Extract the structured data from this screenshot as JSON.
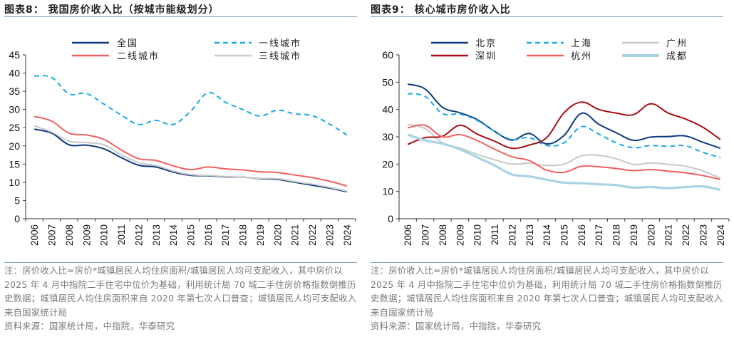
{
  "charts": [
    {
      "title": "图表8： 我国房价收入比（按城市能级划分）",
      "notes": "注：房价收入比=房价*城镇居民人均住房面积/城镇居民人均可支配收入，其中房价以 2025 年 4 月中指院二手住宅中位价为基础，利用统计局 70 城二手住房价格指数倒推历史数据；城镇居民人均住房面积来自 2020 年第七次人口普查；城镇居民人均可支配收入来自国家统计局",
      "source": "资料来源：国家统计局，中指院，华泰研究"
    },
    {
      "title": "图表9： 核心城市房价收入比",
      "notes": "注：房价收入比=房价*城镇居民人均住房面积/城镇居民人均可支配收入，其中房价以 2025 年 4 月中指院二手住宅中位价为基础，利用统计局 70 城二手住房价格指数倒推历史数据；城镇居民人均住房面积来自 2020 年第七次人口普查；城镇居民人均可支配收入来自国家统计局",
      "source": "资料来源：国家统计局，中指院，华泰研究"
    }
  ],
  "chart_data": [
    {
      "type": "line",
      "title": "图表8： 我国房价收入比（按城市能级划分）",
      "xlabel": "",
      "ylabel": "",
      "ylim": [
        0,
        45
      ],
      "yticks": [
        0,
        5,
        10,
        15,
        20,
        25,
        30,
        35,
        40,
        45
      ],
      "grid": false,
      "legend": "top",
      "categories": [
        "2006",
        "2007",
        "2008",
        "2009",
        "2010",
        "2011",
        "2012",
        "2013",
        "2014",
        "2015",
        "2016",
        "2017",
        "2018",
        "2019",
        "2020",
        "2021",
        "2022",
        "2023",
        "2024"
      ],
      "series": [
        {
          "name": "全国",
          "color": "#0b3a7e",
          "dash": false,
          "values": [
            24.6,
            23.5,
            20.3,
            20.2,
            19.2,
            16.8,
            14.7,
            14.2,
            12.8,
            11.9,
            11.8,
            11.5,
            11.4,
            11.0,
            10.8,
            10.0,
            9.2,
            8.4,
            7.4
          ]
        },
        {
          "name": "一线城市",
          "color": "#1aa8e8",
          "dash": true,
          "values": [
            39.2,
            38.8,
            34.3,
            34.4,
            31.5,
            28.5,
            25.9,
            27.0,
            25.9,
            29.5,
            34.6,
            32.0,
            30.0,
            28.2,
            29.8,
            28.8,
            28.3,
            26.0,
            23.0
          ]
        },
        {
          "name": "二线城市",
          "color": "#f2605f",
          "dash": false,
          "values": [
            28.1,
            26.8,
            23.5,
            23.0,
            21.8,
            18.9,
            16.5,
            16.0,
            14.5,
            13.5,
            14.2,
            13.7,
            13.4,
            12.9,
            12.7,
            12.0,
            11.3,
            10.3,
            9.0
          ]
        },
        {
          "name": "三线城市",
          "color": "#c8c8c8",
          "dash": false,
          "values": [
            25.5,
            23.8,
            21.3,
            20.9,
            20.3,
            17.6,
            15.4,
            14.6,
            13.1,
            12.1,
            11.9,
            11.6,
            11.4,
            11.1,
            11.0,
            10.2,
            9.5,
            8.6,
            7.6
          ]
        }
      ]
    },
    {
      "type": "line",
      "title": "图表9： 核心城市房价收入比",
      "xlabel": "",
      "ylabel": "",
      "ylim": [
        0,
        60
      ],
      "yticks": [
        0,
        10,
        20,
        30,
        40,
        50,
        60
      ],
      "grid": false,
      "legend": "top",
      "categories": [
        "2006",
        "2007",
        "2008",
        "2009",
        "2010",
        "2011",
        "2012",
        "2013",
        "2014",
        "2015",
        "2016",
        "2017",
        "2018",
        "2019",
        "2020",
        "2021",
        "2022",
        "2023",
        "2024"
      ],
      "series": [
        {
          "name": "北京",
          "color": "#0b3a7e",
          "dash": false,
          "values": [
            49.3,
            47.5,
            40.8,
            38.8,
            36.3,
            32.0,
            28.8,
            31.2,
            27.4,
            30.5,
            38.6,
            34.6,
            31.5,
            28.7,
            29.9,
            30.1,
            30.3,
            28.0,
            25.8
          ]
        },
        {
          "name": "上海",
          "color": "#1aa8e8",
          "dash": true,
          "values": [
            45.8,
            44.8,
            38.5,
            38.3,
            36.0,
            32.0,
            29.0,
            29.7,
            26.8,
            27.8,
            33.7,
            31.0,
            27.8,
            26.0,
            26.8,
            26.5,
            26.7,
            24.3,
            22.4
          ]
        },
        {
          "name": "广州",
          "color": "#c8c8c8",
          "dash": false,
          "values": [
            34.6,
            33.0,
            27.8,
            25.9,
            23.6,
            21.6,
            20.0,
            20.3,
            19.5,
            20.0,
            23.0,
            23.2,
            22.0,
            19.9,
            20.4,
            19.9,
            19.2,
            17.5,
            14.9
          ]
        },
        {
          "name": "深圳",
          "color": "#a50f15",
          "dash": false,
          "values": [
            27.2,
            29.7,
            30.2,
            34.2,
            31.0,
            28.4,
            25.8,
            27.0,
            29.7,
            38.8,
            42.7,
            40.0,
            38.7,
            38.1,
            42.1,
            38.7,
            36.5,
            33.5,
            29.0
          ]
        },
        {
          "name": "杭州",
          "color": "#f2605f",
          "dash": false,
          "values": [
            33.3,
            34.2,
            30.0,
            30.8,
            28.6,
            25.5,
            22.7,
            21.3,
            17.8,
            17.0,
            19.2,
            19.0,
            18.4,
            17.6,
            18.0,
            17.4,
            16.8,
            15.8,
            14.4
          ]
        },
        {
          "name": "成都",
          "color": "#a9d3e3",
          "dash": false,
          "thick": true,
          "values": [
            30.8,
            28.7,
            27.5,
            25.4,
            22.5,
            19.5,
            16.2,
            15.5,
            14.3,
            13.2,
            13.0,
            12.6,
            12.3,
            11.4,
            11.6,
            11.2,
            11.6,
            11.8,
            10.6
          ]
        }
      ]
    }
  ]
}
